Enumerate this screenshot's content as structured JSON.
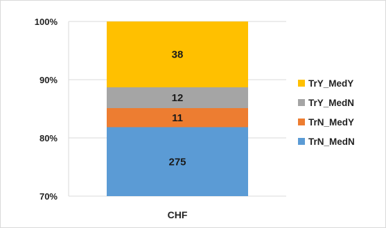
{
  "chart_data": {
    "type": "bar",
    "stacked": true,
    "normalized": true,
    "categories": [
      "CHF"
    ],
    "series": [
      {
        "name": "TrN_MedN",
        "values": [
          275
        ],
        "color": "#5b9bd5"
      },
      {
        "name": "TrN_MedY",
        "values": [
          11
        ],
        "color": "#ed7d31"
      },
      {
        "name": "TrY_MedN",
        "values": [
          12
        ],
        "color": "#a5a5a5"
      },
      {
        "name": "TrY_MedY",
        "values": [
          38
        ],
        "color": "#ffc000"
      }
    ],
    "ylim": [
      70,
      100
    ],
    "yticks": [
      70,
      80,
      90,
      100
    ],
    "ytick_labels": [
      "70%",
      "80%",
      "90%",
      "100%"
    ],
    "grid": true,
    "legend": "right",
    "legend_order": [
      "TrY_MedY",
      "TrY_MedN",
      "TrN_MedY",
      "TrN_MedN"
    ],
    "title": "",
    "xlabel": "",
    "ylabel": ""
  }
}
